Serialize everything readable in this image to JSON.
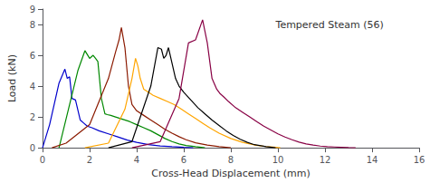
{
  "chart_data": {
    "type": "line",
    "xlabel": "Cross-Head Displacement (mm)",
    "ylabel": "Load (kN)",
    "annotation": "Tempered Steam (56)",
    "xlim": [
      0,
      16
    ],
    "ylim": [
      0,
      9
    ],
    "xticks": [
      0,
      2,
      4,
      6,
      8,
      10,
      12,
      14,
      16
    ],
    "yticks": [
      0,
      2,
      4,
      6,
      8
    ],
    "grid": false,
    "series": [
      {
        "color": "#0000cc",
        "x": [
          0.0,
          0.3,
          0.7,
          0.95,
          1.05,
          1.15,
          1.25,
          1.4,
          1.6,
          1.75,
          1.9,
          2.1,
          2.4,
          2.8,
          3.2,
          3.6,
          4.0,
          4.5,
          5.0,
          5.5,
          6.0,
          6.4
        ],
        "values": [
          0.0,
          1.5,
          4.2,
          5.1,
          4.5,
          4.6,
          3.2,
          3.1,
          1.8,
          1.6,
          1.4,
          1.3,
          1.1,
          0.9,
          0.7,
          0.5,
          0.35,
          0.2,
          0.12,
          0.07,
          0.03,
          0.0
        ]
      },
      {
        "color": "#008800",
        "x": [
          0.7,
          1.1,
          1.5,
          1.8,
          2.0,
          2.15,
          2.25,
          2.35,
          2.5,
          2.65,
          2.75,
          2.9,
          3.1,
          3.4,
          3.7,
          4.0,
          4.3,
          4.6,
          4.9,
          5.2,
          5.5,
          5.8,
          6.1,
          6.5,
          6.9
        ],
        "values": [
          0.0,
          2.5,
          5.0,
          6.3,
          5.8,
          6.0,
          5.8,
          5.6,
          3.2,
          2.2,
          2.15,
          2.1,
          2.0,
          1.85,
          1.7,
          1.5,
          1.3,
          1.1,
          0.85,
          0.6,
          0.4,
          0.25,
          0.15,
          0.07,
          0.0
        ]
      },
      {
        "color": "#8b1a00",
        "x": [
          0.4,
          1.0,
          2.0,
          2.8,
          3.1,
          3.25,
          3.35,
          3.5,
          3.65,
          3.8,
          4.0,
          4.3,
          4.6,
          4.9,
          5.2,
          5.5,
          5.8,
          6.1,
          6.5,
          7.0,
          7.5,
          8.0
        ],
        "values": [
          0.0,
          0.3,
          1.5,
          4.5,
          6.2,
          7.0,
          7.8,
          6.5,
          4.0,
          2.8,
          2.4,
          2.1,
          1.8,
          1.5,
          1.2,
          0.95,
          0.72,
          0.52,
          0.32,
          0.18,
          0.07,
          0.0
        ]
      },
      {
        "color": "#ffa500",
        "x": [
          1.8,
          2.8,
          3.5,
          3.8,
          3.95,
          4.05,
          4.15,
          4.3,
          4.5,
          4.7,
          5.0,
          5.3,
          5.6,
          5.9,
          6.2,
          6.5,
          6.8,
          7.1,
          7.5,
          8.0,
          8.5,
          9.0,
          9.5,
          9.8,
          10.1
        ],
        "values": [
          0.0,
          0.3,
          2.5,
          4.5,
          5.8,
          5.3,
          4.5,
          3.8,
          3.6,
          3.4,
          3.2,
          3.0,
          2.8,
          2.5,
          2.2,
          1.9,
          1.6,
          1.3,
          0.95,
          0.6,
          0.35,
          0.18,
          0.08,
          0.04,
          0.0
        ]
      },
      {
        "color": "#000000",
        "x": [
          2.8,
          3.8,
          4.6,
          4.9,
          5.05,
          5.15,
          5.25,
          5.35,
          5.5,
          5.65,
          5.8,
          6.0,
          6.3,
          6.6,
          6.9,
          7.2,
          7.5,
          7.8,
          8.1,
          8.4,
          8.7,
          9.0,
          9.5,
          9.9
        ],
        "values": [
          0.0,
          0.4,
          4.0,
          6.5,
          6.4,
          5.8,
          6.0,
          6.5,
          5.5,
          4.5,
          4.0,
          3.6,
          3.1,
          2.6,
          2.2,
          1.8,
          1.45,
          1.1,
          0.8,
          0.55,
          0.35,
          0.2,
          0.07,
          0.0
        ]
      },
      {
        "color": "#880044",
        "x": [
          3.8,
          5.0,
          5.8,
          6.2,
          6.5,
          6.8,
          7.0,
          7.2,
          7.4,
          7.55,
          7.7,
          7.9,
          8.2,
          8.5,
          8.8,
          9.1,
          9.4,
          9.7,
          10.0,
          10.3,
          10.6,
          10.9,
          11.2,
          11.5,
          11.8,
          12.1,
          12.4,
          12.7,
          13.0,
          13.3
        ],
        "values": [
          0.0,
          0.4,
          3.2,
          6.8,
          7.0,
          8.3,
          6.8,
          4.5,
          3.8,
          3.5,
          3.3,
          3.0,
          2.6,
          2.3,
          2.0,
          1.7,
          1.4,
          1.15,
          0.9,
          0.7,
          0.52,
          0.37,
          0.25,
          0.17,
          0.11,
          0.07,
          0.05,
          0.03,
          0.01,
          0.0
        ]
      }
    ]
  }
}
